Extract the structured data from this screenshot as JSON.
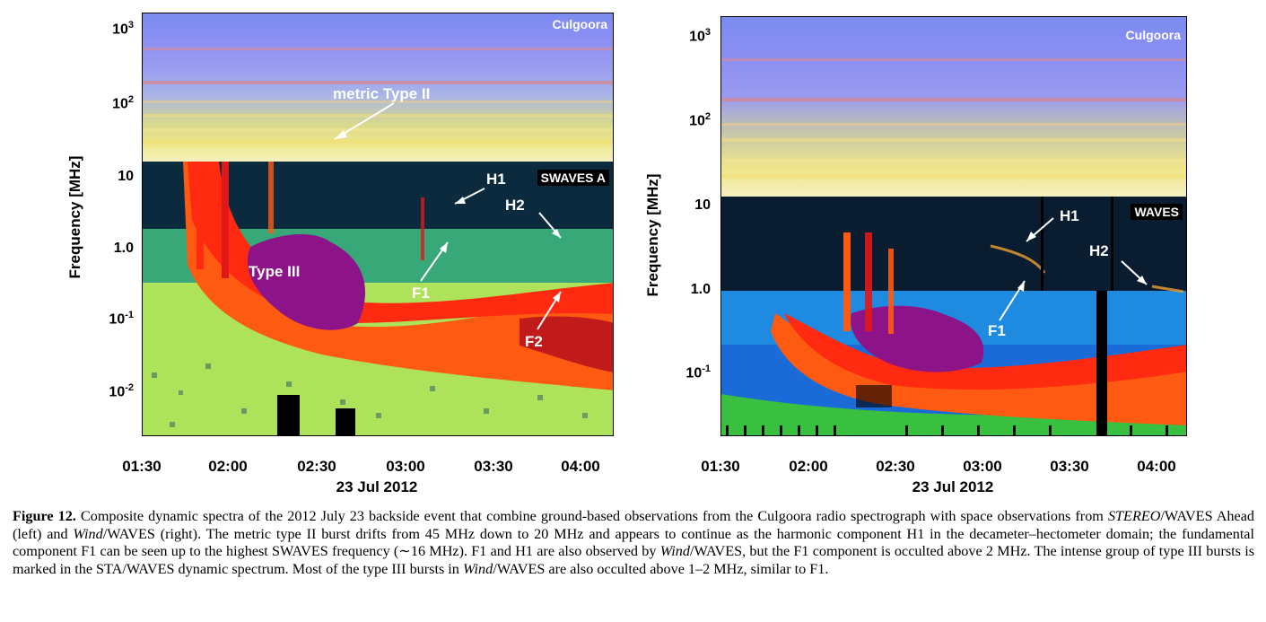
{
  "left_panel": {
    "station_label": "Culgoora",
    "instrument_label": "SWAVES A",
    "ylabel": "Frequency [MHz]",
    "yticks": [
      {
        "base": "10",
        "exp": "3"
      },
      {
        "base": "10",
        "exp": "2"
      },
      {
        "base": "10",
        "exp": ""
      },
      {
        "base": "1.0",
        "exp": ""
      },
      {
        "base": "10",
        "exp": "-1"
      },
      {
        "base": "10",
        "exp": "-2"
      }
    ],
    "xticks": [
      "01:30",
      "02:00",
      "02:30",
      "03:00",
      "03:30",
      "04:00"
    ],
    "xlabel": "23 Jul 2012",
    "annotations": {
      "metric_type_ii": "metric Type II",
      "h1": "H1",
      "h2": "H2",
      "type_iii": "Type III",
      "f1": "F1",
      "f2": "F2"
    }
  },
  "right_panel": {
    "station_label": "Culgoora",
    "instrument_label": "WAVES",
    "ylabel": "Frequency [MHz]",
    "yticks": [
      {
        "base": "10",
        "exp": "3"
      },
      {
        "base": "10",
        "exp": "2"
      },
      {
        "base": "10",
        "exp": ""
      },
      {
        "base": "1.0",
        "exp": ""
      },
      {
        "base": "10",
        "exp": "-1"
      }
    ],
    "xticks": [
      "01:30",
      "02:00",
      "02:30",
      "03:00",
      "03:30",
      "04:00"
    ],
    "xlabel": "23 Jul 2012",
    "annotations": {
      "h1": "H1",
      "h2": "H2",
      "f1": "F1"
    }
  },
  "caption": {
    "label": "Figure 12.",
    "text_1": " Composite dynamic spectra of the 2012 July 23 backside event that combine ground-based observations from the Culgoora radio spectrograph with space observations from ",
    "stereo": "STEREO",
    "text_2": "/WAVES Ahead (left) and ",
    "wind1": "Wind",
    "text_3": "/WAVES (right). The metric type II burst drifts from 45 MHz down to 20 MHz and appears to continue as the harmonic component H1 in the decameter–hectometer domain; the fundamental component F1 can be seen up to the highest SWAVES frequency (∼16 MHz). F1 and H1 are also observed by ",
    "wind2": "Wind",
    "text_4": "/WAVES, but the F1 component is occulted above 2 MHz. The intense group of type III bursts is marked in the STA/WAVES dynamic spectrum. Most of the type III bursts in ",
    "wind3": "Wind",
    "text_5": "/WAVES are also occulted above 1–2 MHz, similar to F1."
  }
}
